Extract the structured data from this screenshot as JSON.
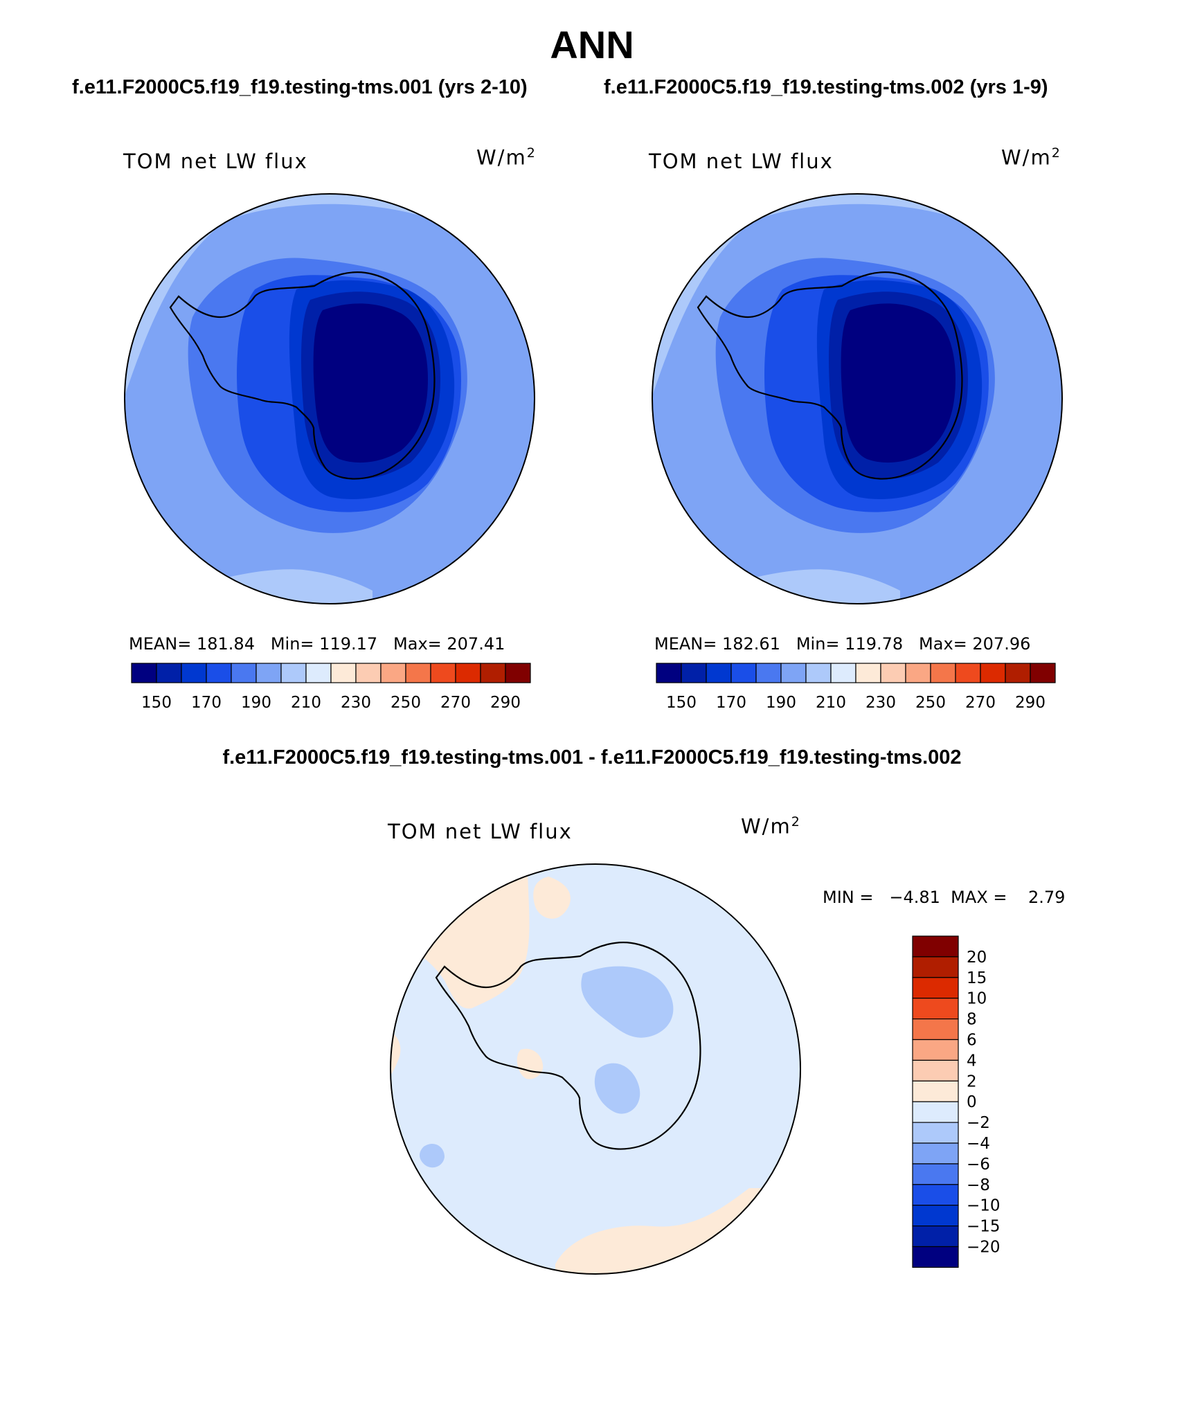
{
  "figure": {
    "season": "ANN",
    "left_case": "f.e11.F2000C5.f19_f19.testing-tms.001 (yrs 2-10)",
    "right_case": "f.e11.F2000C5.f19_f19.testing-tms.002 (yrs 1-9)",
    "diff_title": "f.e11.F2000C5.f19_f19.testing-tms.001 - f.e11.F2000C5.f19_f19.testing-tms.002"
  },
  "panels": [
    {
      "variable": "TOM net LW flux",
      "units": "W/m",
      "units_sup": "2",
      "stats": "MEAN= 181.84   Min= 119.17   Max= 207.41"
    },
    {
      "variable": "TOM net LW flux",
      "units": "W/m",
      "units_sup": "2",
      "stats": "MEAN= 182.61   Min= 119.78   Max= 207.96"
    }
  ],
  "diff_panel": {
    "variable": "TOM net LW flux",
    "units": "W/m",
    "units_sup": "2",
    "stats": "MIN =   −4.81  MAX =    2.79"
  },
  "colorbar_main": {
    "colors": [
      "#000080",
      "#0020A8",
      "#0038D0",
      "#1A4EE8",
      "#4A78F0",
      "#7EA4F5",
      "#ADC9FA",
      "#DDEBFD",
      "#FDEAD8",
      "#FCCCB3",
      "#FAA784",
      "#F4764A",
      "#EE4A1E",
      "#DC2A00",
      "#B01E00",
      "#800000"
    ],
    "labels": [
      "150",
      "170",
      "190",
      "210",
      "230",
      "250",
      "270",
      "290"
    ]
  },
  "colorbar_diff": {
    "colors": [
      "#000080",
      "#0020A8",
      "#0038D0",
      "#1A4EE8",
      "#4A78F0",
      "#7EA4F5",
      "#ADC9FA",
      "#DDEBFD",
      "#FDEAD8",
      "#FCCCB3",
      "#FAA784",
      "#F4764A",
      "#EE4A1E",
      "#DC2A00",
      "#B01E00",
      "#800000"
    ],
    "labels": [
      "20",
      "15",
      "10",
      "8",
      "6",
      "4",
      "2",
      "0",
      "−2",
      "−4",
      "−6",
      "−8",
      "−10",
      "−15",
      "−20"
    ]
  }
}
